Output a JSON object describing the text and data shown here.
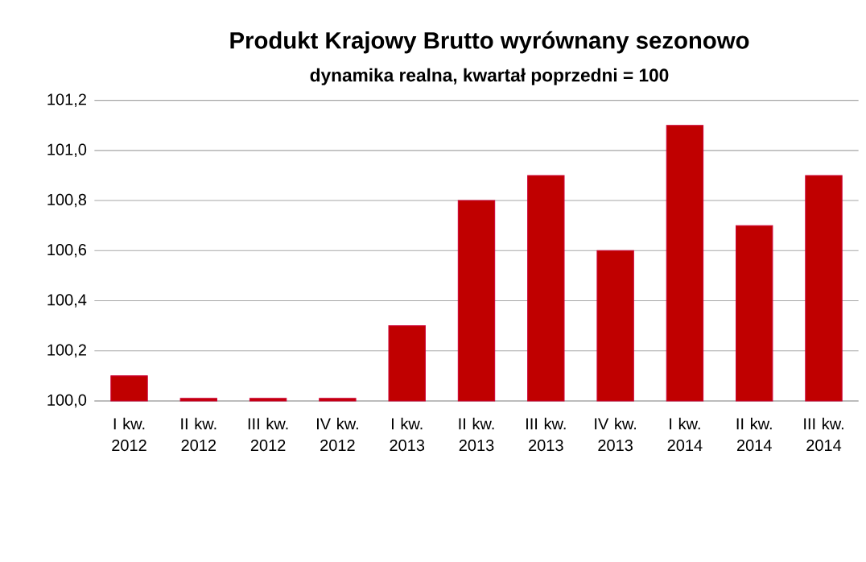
{
  "chart_data": {
    "type": "bar",
    "title": "Produkt Krajowy Brutto wyrównany sezonowo",
    "subtitle": "dynamika realna, kwartał poprzedni = 100",
    "categories": [
      "I kw. 2012",
      "II kw. 2012",
      "III kw. 2012",
      "IV kw. 2012",
      "I kw. 2013",
      "II kw. 2013",
      "III kw. 2013",
      "IV kw. 2013",
      "I kw. 2014",
      "II kw. 2014",
      "III kw. 2014"
    ],
    "values": [
      100.1,
      100.01,
      100.01,
      100.01,
      100.3,
      100.8,
      100.9,
      100.6,
      101.1,
      100.7,
      100.9
    ],
    "color": "#c00000",
    "ylim": [
      100,
      101.2
    ],
    "yticks": [
      {
        "value": 100,
        "label": "100,0"
      },
      {
        "value": 100.2,
        "label": "100,2"
      },
      {
        "value": 100.4,
        "label": "100,4"
      },
      {
        "value": 100.6,
        "label": "100,6"
      },
      {
        "value": 100.8,
        "label": "100,8"
      },
      {
        "value": 101,
        "label": "101,0"
      },
      {
        "value": 101.2,
        "label": "101,2"
      }
    ],
    "grid": "y"
  }
}
